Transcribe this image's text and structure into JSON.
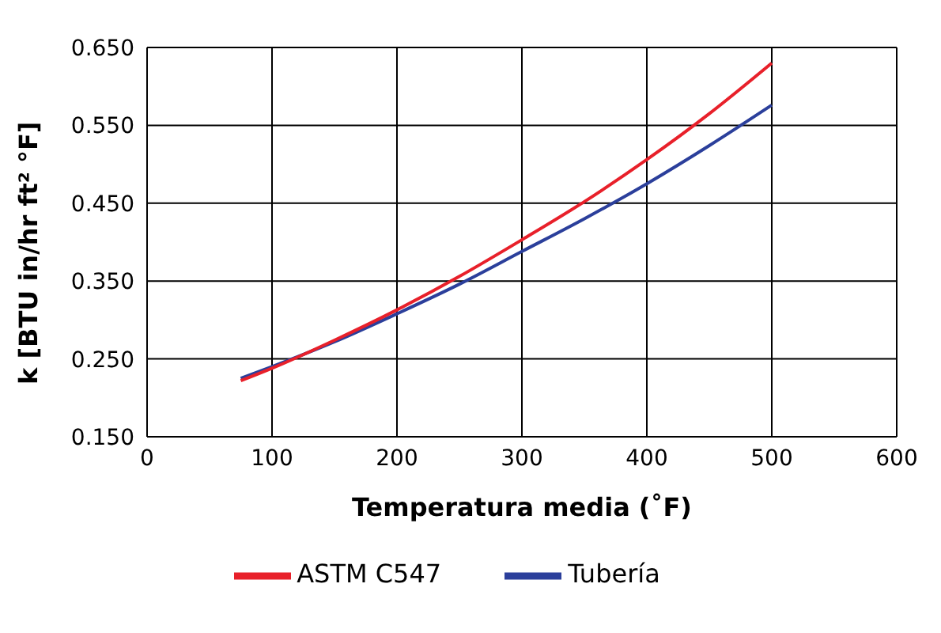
{
  "chart_data": {
    "type": "line",
    "xlabel": "Temperatura media (˚F)",
    "ylabel": "k [BTU in/hr ft² °F]",
    "xlim": [
      0,
      600
    ],
    "xticks": [
      0,
      100,
      200,
      300,
      400,
      500,
      600
    ],
    "ylim": [
      0.15,
      0.65
    ],
    "yticks": [
      {
        "value": 0.15,
        "label": "0.150"
      },
      {
        "value": 0.25,
        "label": "0.250"
      },
      {
        "value": 0.35,
        "label": "0.350"
      },
      {
        "value": 0.45,
        "label": "0.450"
      },
      {
        "value": 0.55,
        "label": "0.550"
      },
      {
        "value": 0.65,
        "label": "0.650"
      }
    ],
    "grid": true,
    "legend": "bottom",
    "marker": "none",
    "line_style": "solid",
    "series": [
      {
        "name": "Tubería",
        "color": "#2b3f9b",
        "x": [
          75,
          100,
          150,
          200,
          250,
          300,
          350,
          400,
          450,
          500
        ],
        "values": [
          0.225,
          0.24,
          0.272,
          0.308,
          0.346,
          0.388,
          0.43,
          0.475,
          0.524,
          0.576
        ]
      },
      {
        "name": "ASTM C547",
        "color": "#e8202a",
        "x": [
          75,
          100,
          150,
          200,
          250,
          300,
          350,
          400,
          450,
          500
        ],
        "values": [
          0.222,
          0.238,
          0.274,
          0.313,
          0.356,
          0.403,
          0.452,
          0.506,
          0.565,
          0.63
        ]
      }
    ]
  }
}
